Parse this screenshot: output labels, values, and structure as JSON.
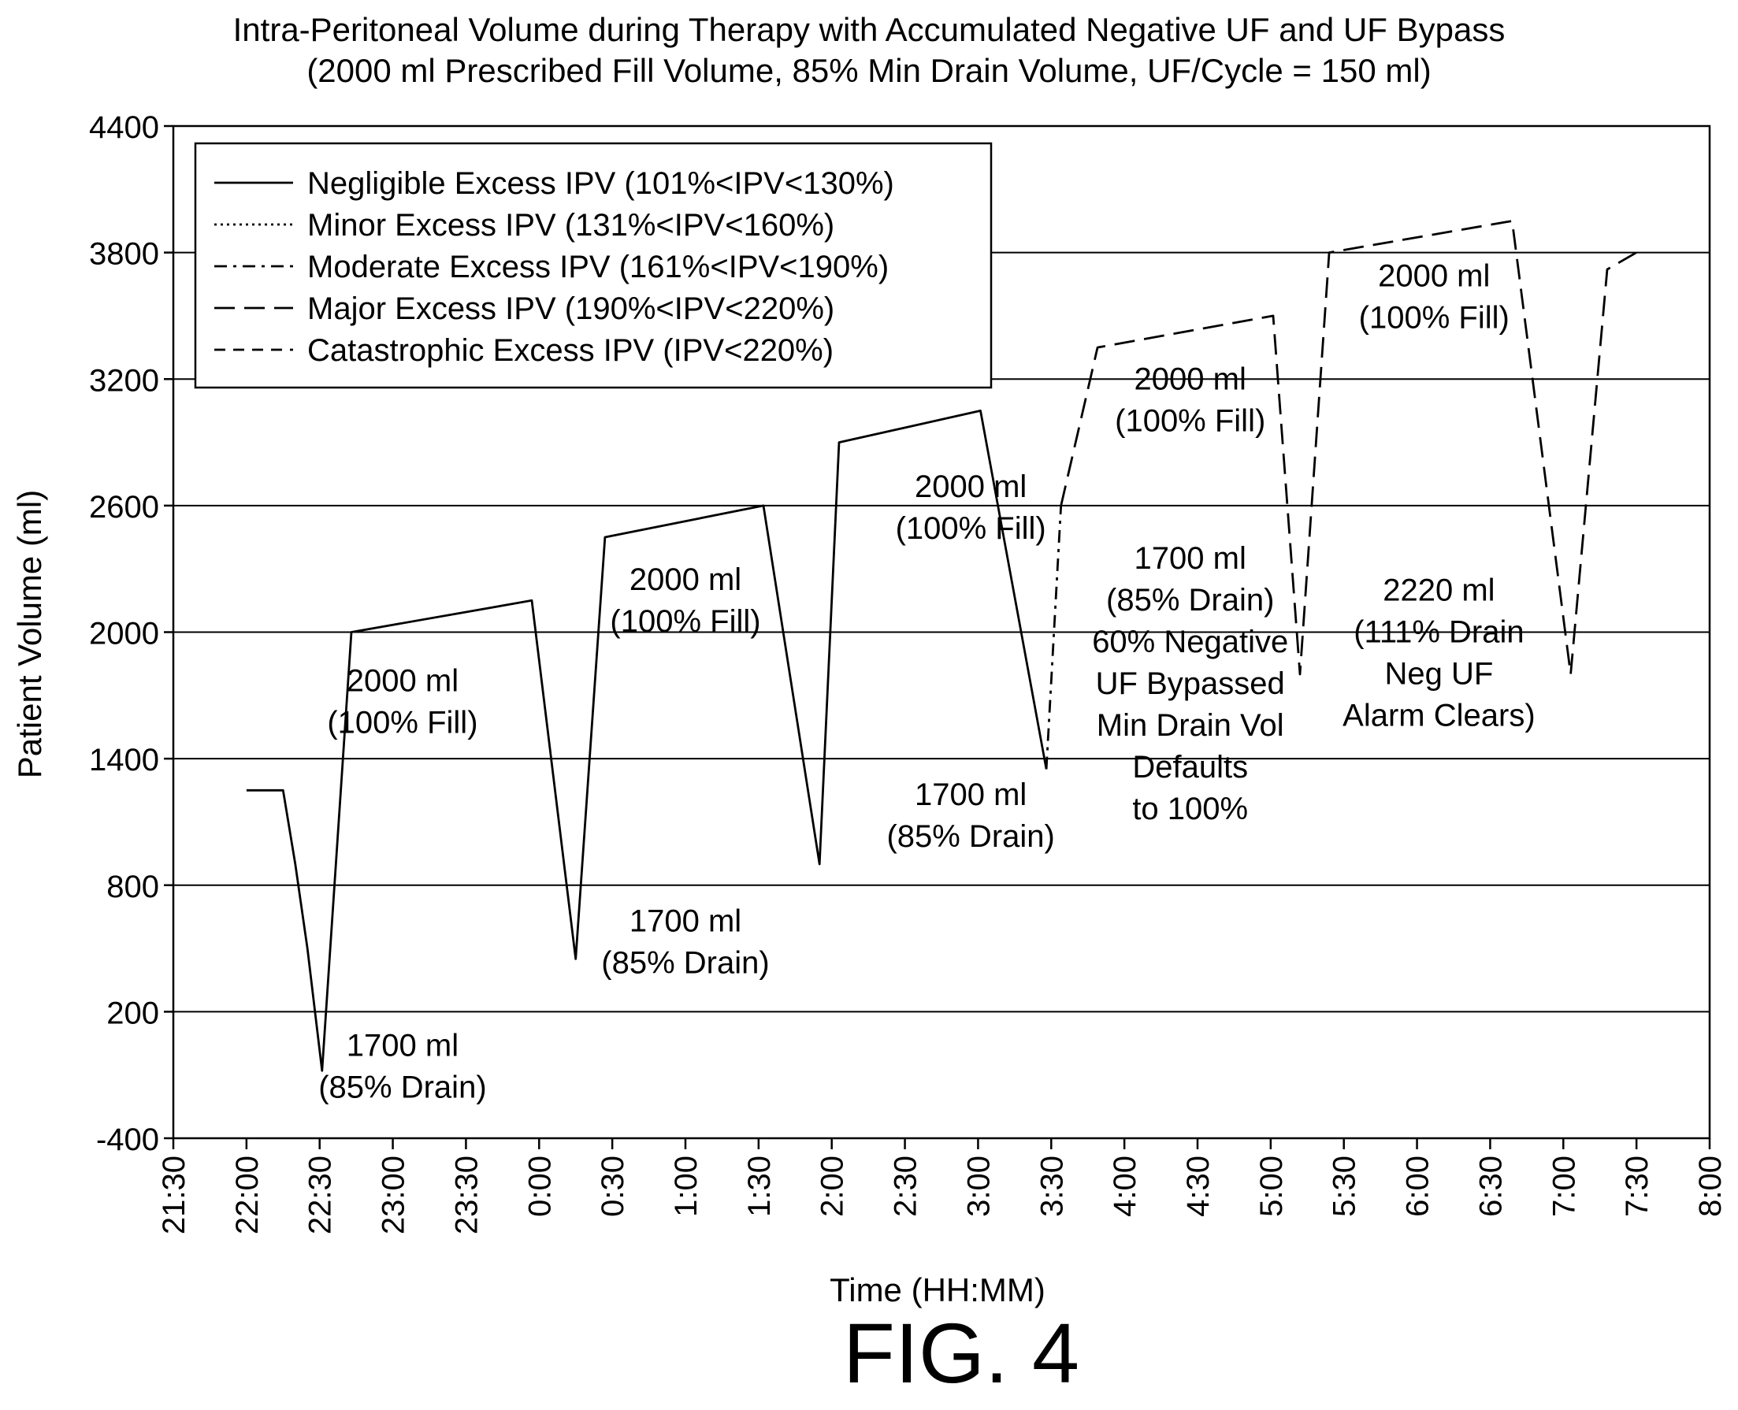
{
  "chart_data": {
    "type": "line",
    "title": "Intra-Peritoneal Volume during Therapy with Accumulated Negative UF and UF Bypass",
    "subtitle": "(2000 ml Prescribed Fill Volume, 85% Min Drain Volume, UF/Cycle = 150 ml)",
    "xlabel": "Time (HH:MM)",
    "ylabel": "Patient Volume (ml)",
    "figure_label": "FIG. 4",
    "xlim": [
      "21:30",
      "8:00"
    ],
    "ylim": [
      -400,
      4400
    ],
    "x_ticks": [
      "21:30",
      "22:00",
      "22:30",
      "23:00",
      "23:30",
      "0:00",
      "0:30",
      "1:00",
      "1:30",
      "2:00",
      "2:30",
      "3:00",
      "3:30",
      "4:00",
      "4:30",
      "5:00",
      "5:30",
      "6:00",
      "6:30",
      "7:00",
      "7:30",
      "8:00"
    ],
    "y_ticks": [
      4400,
      3800,
      3200,
      2600,
      2000,
      1400,
      800,
      200,
      -400
    ],
    "grid": "horizontal",
    "legend_position": "top-left",
    "series": [
      {
        "name": "Negligible Excess IPV (101%<IPV<130%)",
        "dash": "solid",
        "points": [
          [
            "22:00",
            1250
          ],
          [
            "22:15",
            1250
          ],
          [
            "22:20",
            900
          ],
          [
            "22:25",
            500
          ],
          [
            "22:31",
            -80
          ],
          [
            "22:43",
            2000
          ],
          [
            "23:57",
            2150
          ],
          [
            "0:15",
            450
          ],
          [
            "0:27",
            2450
          ],
          [
            "1:32",
            2600
          ],
          [
            "1:55",
            900
          ],
          [
            "2:03",
            2900
          ],
          [
            "3:01",
            3050
          ],
          [
            "3:28",
            1350
          ]
        ]
      },
      {
        "name": "Minor Excess IPV (131%<IPV<160%)",
        "dash": "dotted",
        "points": []
      },
      {
        "name": "Moderate Excess IPV (161%<IPV<190%)",
        "dash": "dash-dot",
        "points": [
          [
            "3:28",
            1350
          ],
          [
            "3:34",
            2600
          ]
        ]
      },
      {
        "name": "Major Excess IPV (190%<IPV<220%)",
        "dash": "long-dash",
        "points": [
          [
            "3:34",
            2600
          ],
          [
            "3:49",
            3350
          ],
          [
            "5:01",
            3500
          ],
          [
            "5:12",
            1800
          ],
          [
            "5:24",
            3800
          ],
          [
            "6:39",
            3950
          ],
          [
            "7:03",
            1800
          ],
          [
            "7:18",
            3720
          ],
          [
            "7:30",
            3800
          ]
        ]
      },
      {
        "name": "Catastrophic Excess IPV (IPV<220%)",
        "dash": "dashed",
        "points": []
      }
    ],
    "annotations": [
      {
        "lines": [
          "1700 ml",
          "(85% Drain)"
        ],
        "at": [
          "23:04",
          -10
        ]
      },
      {
        "lines": [
          "2000 ml",
          "(100% Fill)"
        ],
        "at": [
          "23:04",
          1720
        ]
      },
      {
        "lines": [
          "1700 ml",
          "(85% Drain)"
        ],
        "at": [
          "1:00",
          580
        ]
      },
      {
        "lines": [
          "2000 ml",
          "(100% Fill)"
        ],
        "at": [
          "1:00",
          2200
        ]
      },
      {
        "lines": [
          "1700 ml",
          "(85% Drain)"
        ],
        "at": [
          "2:57",
          1180
        ]
      },
      {
        "lines": [
          "2000 ml",
          "(100% Fill)"
        ],
        "at": [
          "2:57",
          2640
        ]
      },
      {
        "lines": [
          "2000 ml",
          "(100% Fill)"
        ],
        "at": [
          "4:27",
          3150
        ]
      },
      {
        "lines": [
          "1700 ml",
          "(85% Drain)",
          "60% Negative",
          "UF Bypassed",
          "Min Drain Vol",
          "Defaults",
          "to 100%"
        ],
        "at": [
          "4:27",
          2300
        ]
      },
      {
        "lines": [
          "2000 ml",
          "(100% Fill)"
        ],
        "at": [
          "6:07",
          3640
        ]
      },
      {
        "lines": [
          "2220 ml",
          "(111% Drain",
          "Neg UF",
          "Alarm Clears)"
        ],
        "at": [
          "6:09",
          2150
        ]
      }
    ]
  }
}
